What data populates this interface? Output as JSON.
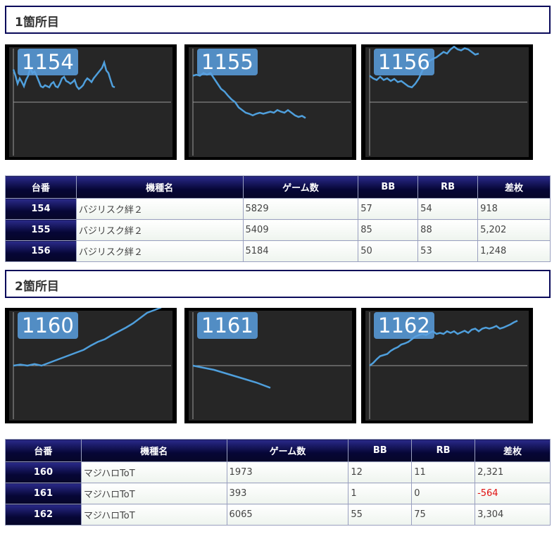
{
  "sections": [
    {
      "title": "1箇所目",
      "charts": [
        {
          "label": "1154",
          "points": [
            [
              0,
              0.62
            ],
            [
              3,
              0.5
            ],
            [
              6,
              0.35
            ],
            [
              9,
              0.45
            ],
            [
              12,
              0.38
            ],
            [
              15,
              0.3
            ],
            [
              18,
              0.42
            ],
            [
              21,
              0.5
            ],
            [
              24,
              0.65
            ],
            [
              27,
              0.55
            ],
            [
              30,
              0.58
            ],
            [
              33,
              0.5
            ],
            [
              36,
              0.4
            ],
            [
              39,
              0.3
            ],
            [
              42,
              0.28
            ],
            [
              45,
              0.32
            ],
            [
              48,
              0.3
            ],
            [
              51,
              0.28
            ],
            [
              54,
              0.35
            ],
            [
              57,
              0.38
            ],
            [
              60,
              0.3
            ],
            [
              63,
              0.28
            ],
            [
              66,
              0.35
            ],
            [
              69,
              0.45
            ],
            [
              72,
              0.48
            ],
            [
              75,
              0.4
            ],
            [
              78,
              0.38
            ],
            [
              81,
              0.35
            ],
            [
              84,
              0.38
            ],
            [
              87,
              0.42
            ],
            [
              90,
              0.3
            ],
            [
              93,
              0.25
            ],
            [
              96,
              0.28
            ],
            [
              99,
              0.32
            ],
            [
              102,
              0.4
            ],
            [
              105,
              0.45
            ],
            [
              108,
              0.42
            ],
            [
              111,
              0.38
            ],
            [
              114,
              0.45
            ],
            [
              117,
              0.5
            ],
            [
              120,
              0.55
            ],
            [
              123,
              0.6
            ],
            [
              126,
              0.65
            ],
            [
              129,
              0.75
            ],
            [
              132,
              0.6
            ],
            [
              135,
              0.55
            ],
            [
              138,
              0.42
            ],
            [
              141,
              0.3
            ],
            [
              144,
              0.28
            ]
          ]
        },
        {
          "label": "1155",
          "points": [
            [
              0,
              0.5
            ],
            [
              5,
              0.52
            ],
            [
              10,
              0.5
            ],
            [
              15,
              0.55
            ],
            [
              20,
              0.52
            ],
            [
              25,
              0.55
            ],
            [
              30,
              0.45
            ],
            [
              35,
              0.35
            ],
            [
              40,
              0.25
            ],
            [
              45,
              0.2
            ],
            [
              50,
              0.12
            ],
            [
              55,
              0.05
            ],
            [
              60,
              0.0
            ],
            [
              65,
              -0.1
            ],
            [
              70,
              -0.15
            ],
            [
              75,
              -0.2
            ],
            [
              80,
              -0.22
            ],
            [
              85,
              -0.25
            ],
            [
              90,
              -0.22
            ],
            [
              95,
              -0.2
            ],
            [
              100,
              -0.22
            ],
            [
              105,
              -0.2
            ],
            [
              110,
              -0.18
            ],
            [
              115,
              -0.2
            ],
            [
              120,
              -0.15
            ],
            [
              125,
              -0.18
            ],
            [
              130,
              -0.2
            ],
            [
              135,
              -0.15
            ],
            [
              140,
              -0.2
            ],
            [
              145,
              -0.25
            ],
            [
              150,
              -0.28
            ],
            [
              155,
              -0.26
            ],
            [
              160,
              -0.3
            ]
          ]
        },
        {
          "label": "1156",
          "points": [
            [
              0,
              0.5
            ],
            [
              5,
              0.45
            ],
            [
              10,
              0.42
            ],
            [
              15,
              0.48
            ],
            [
              20,
              0.42
            ],
            [
              25,
              0.45
            ],
            [
              30,
              0.4
            ],
            [
              35,
              0.44
            ],
            [
              40,
              0.38
            ],
            [
              45,
              0.4
            ],
            [
              50,
              0.35
            ],
            [
              55,
              0.3
            ],
            [
              60,
              0.28
            ],
            [
              65,
              0.35
            ],
            [
              70,
              0.45
            ],
            [
              75,
              0.6
            ],
            [
              80,
              0.7
            ],
            [
              85,
              0.78
            ],
            [
              90,
              0.82
            ],
            [
              95,
              0.85
            ],
            [
              100,
              0.9
            ],
            [
              105,
              0.95
            ],
            [
              110,
              0.92
            ],
            [
              115,
              1.0
            ],
            [
              120,
              1.05
            ],
            [
              125,
              1.0
            ],
            [
              130,
              0.98
            ],
            [
              135,
              1.02
            ],
            [
              140,
              1.0
            ],
            [
              145,
              0.95
            ],
            [
              150,
              0.9
            ],
            [
              155,
              0.92
            ]
          ]
        }
      ],
      "table": {
        "headers": [
          "台番",
          "機種名",
          "ゲーム数",
          "BB",
          "RB",
          "差枚"
        ],
        "rows": [
          {
            "no": "154",
            "model": "バジリスク絆２",
            "games": "5829",
            "bb": "57",
            "rb": "54",
            "diff": "918"
          },
          {
            "no": "155",
            "model": "バジリスク絆２",
            "games": "5409",
            "bb": "85",
            "rb": "88",
            "diff": "5,202"
          },
          {
            "no": "156",
            "model": "バジリスク絆２",
            "games": "5184",
            "bb": "50",
            "rb": "53",
            "diff": "1,248"
          }
        ]
      }
    },
    {
      "title": "2箇所目",
      "charts": [
        {
          "label": "1160",
          "points": [
            [
              0,
              0.0
            ],
            [
              10,
              0.02
            ],
            [
              20,
              0.0
            ],
            [
              30,
              0.03
            ],
            [
              40,
              0.0
            ],
            [
              50,
              0.05
            ],
            [
              60,
              0.1
            ],
            [
              70,
              0.15
            ],
            [
              80,
              0.2
            ],
            [
              90,
              0.25
            ],
            [
              100,
              0.3
            ],
            [
              110,
              0.38
            ],
            [
              120,
              0.45
            ],
            [
              130,
              0.5
            ],
            [
              140,
              0.58
            ],
            [
              150,
              0.65
            ],
            [
              160,
              0.72
            ],
            [
              170,
              0.8
            ],
            [
              180,
              0.9
            ],
            [
              190,
              1.0
            ],
            [
              200,
              1.05
            ],
            [
              210,
              1.1
            ]
          ]
        },
        {
          "label": "1161",
          "points": [
            [
              0,
              0.0
            ],
            [
              15,
              -0.04
            ],
            [
              30,
              -0.08
            ],
            [
              45,
              -0.14
            ],
            [
              60,
              -0.2
            ],
            [
              75,
              -0.26
            ],
            [
              90,
              -0.32
            ],
            [
              100,
              -0.37
            ],
            [
              110,
              -0.42
            ]
          ]
        },
        {
          "label": "1162",
          "points": [
            [
              0,
              0.0
            ],
            [
              5,
              0.05
            ],
            [
              10,
              0.12
            ],
            [
              15,
              0.18
            ],
            [
              20,
              0.2
            ],
            [
              25,
              0.22
            ],
            [
              30,
              0.28
            ],
            [
              35,
              0.32
            ],
            [
              40,
              0.35
            ],
            [
              45,
              0.4
            ],
            [
              50,
              0.42
            ],
            [
              55,
              0.45
            ],
            [
              60,
              0.5
            ],
            [
              65,
              0.55
            ],
            [
              70,
              0.58
            ],
            [
              75,
              0.6
            ],
            [
              80,
              0.58
            ],
            [
              85,
              0.62
            ],
            [
              90,
              0.65
            ],
            [
              95,
              0.6
            ],
            [
              100,
              0.62
            ],
            [
              105,
              0.6
            ],
            [
              110,
              0.65
            ],
            [
              115,
              0.62
            ],
            [
              120,
              0.65
            ],
            [
              125,
              0.6
            ],
            [
              130,
              0.63
            ],
            [
              135,
              0.66
            ],
            [
              140,
              0.62
            ],
            [
              145,
              0.68
            ],
            [
              150,
              0.7
            ],
            [
              155,
              0.65
            ],
            [
              160,
              0.7
            ],
            [
              165,
              0.72
            ],
            [
              170,
              0.7
            ],
            [
              175,
              0.72
            ],
            [
              180,
              0.75
            ],
            [
              185,
              0.7
            ],
            [
              190,
              0.72
            ],
            [
              195,
              0.75
            ],
            [
              200,
              0.78
            ],
            [
              205,
              0.82
            ],
            [
              210,
              0.85
            ]
          ]
        }
      ],
      "table": {
        "headers": [
          "台番",
          "機種名",
          "ゲーム数",
          "BB",
          "RB",
          "差枚"
        ],
        "rows": [
          {
            "no": "160",
            "model": "マジハロToT",
            "games": "1973",
            "bb": "12",
            "rb": "11",
            "diff": "2,321"
          },
          {
            "no": "161",
            "model": "マジハロToT",
            "games": "393",
            "bb": "1",
            "rb": "0",
            "diff": "-564"
          },
          {
            "no": "162",
            "model": "マジハロToT",
            "games": "6065",
            "bb": "55",
            "rb": "75",
            "diff": "3,304"
          }
        ]
      }
    }
  ],
  "colors": {
    "line": "#4f9fdc",
    "baseline": "#9a9a9a",
    "negative": "#e01010"
  }
}
